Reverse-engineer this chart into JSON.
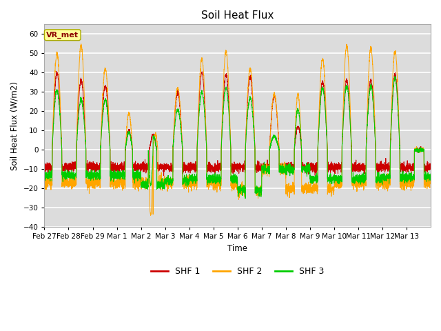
{
  "title": "Soil Heat Flux",
  "ylabel": "Soil Heat Flux (W/m2)",
  "xlabel": "Time",
  "ylim": [
    -40,
    65
  ],
  "yticks": [
    -40,
    -30,
    -20,
    -10,
    0,
    10,
    20,
    30,
    40,
    50,
    60
  ],
  "annotation_text": "VR_met",
  "annotation_color": "#8B0000",
  "annotation_bg": "#FFFF99",
  "fig_bg_color": "#FFFFFF",
  "axes_bg": "#DCDCDC",
  "grid_color": "#FFFFFF",
  "shf1_color": "#CC0000",
  "shf2_color": "#FFA500",
  "shf3_color": "#00CC00",
  "legend_items": [
    "SHF 1",
    "SHF 2",
    "SHF 3"
  ],
  "xtick_labels": [
    "Feb 27",
    "Feb 28",
    "Feb 29",
    "Mar 1",
    "Mar 2",
    "Mar 3",
    "Mar 4",
    "Mar 5",
    "Mar 6",
    "Mar 7",
    "Mar 8",
    "Mar 9",
    "Mar 10",
    "Mar 11",
    "Mar 12",
    "Mar 13"
  ],
  "n_days": 16
}
